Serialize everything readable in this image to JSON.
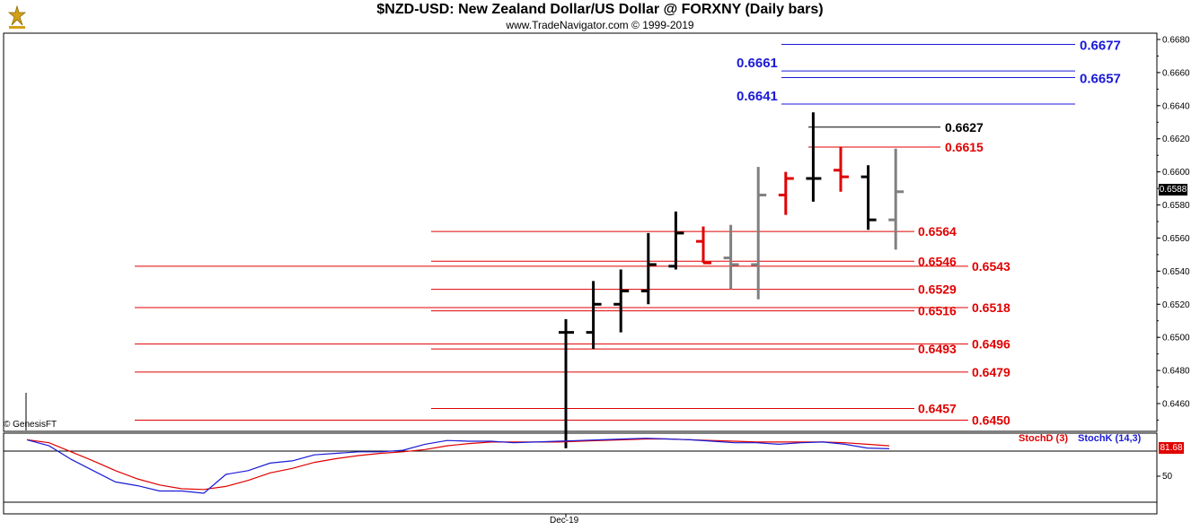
{
  "header": {
    "title": "$NZD-USD:  New Zealand Dollar/US Dollar @ FORXNY  (Daily bars)",
    "subtitle": "www.TradeNavigator.com © 1999-2019"
  },
  "copyright": "© GenesisFT",
  "last_price": "0.6588",
  "stoch": {
    "value_badge": "81.68",
    "legend_d": "StochD (3)",
    "legend_k": "StochK (14,3)",
    "ticks": [
      "50"
    ],
    "colors": {
      "d": "#e00000",
      "k": "#1a1ad8"
    }
  },
  "x_label": "Dec-19",
  "colors": {
    "up_bar": "#000000",
    "down_bar": "#e00000",
    "inside_bar": "#808080",
    "support_line": "#e00000",
    "target_line": "#1a1ad8",
    "pivot_line": "#000000"
  },
  "chart_data": {
    "type": "bar",
    "title": "$NZD-USD:  New Zealand Dollar/US Dollar @ FORXNY  (Daily bars)",
    "y_ticks": [
      "0.6680",
      "0.6660",
      "0.6640",
      "0.6620",
      "0.6600",
      "0.6580",
      "0.6560",
      "0.6540",
      "0.6520",
      "0.6500",
      "0.6480",
      "0.6460"
    ],
    "ylim": [
      0.6433,
      0.669
    ],
    "bars": [
      {
        "o": 0.6503,
        "h": 0.6511,
        "l": 0.6433,
        "c": 0.6503,
        "color": "black"
      },
      {
        "o": 0.6503,
        "h": 0.6534,
        "l": 0.6493,
        "c": 0.652,
        "color": "black"
      },
      {
        "o": 0.652,
        "h": 0.6541,
        "l": 0.6503,
        "c": 0.6528,
        "color": "black"
      },
      {
        "o": 0.6528,
        "h": 0.6563,
        "l": 0.652,
        "c": 0.6544,
        "color": "black"
      },
      {
        "o": 0.6543,
        "h": 0.6576,
        "l": 0.6541,
        "c": 0.6563,
        "color": "black"
      },
      {
        "o": 0.6558,
        "h": 0.6567,
        "l": 0.6545,
        "c": 0.6545,
        "color": "red"
      },
      {
        "o": 0.6548,
        "h": 0.6568,
        "l": 0.6529,
        "c": 0.6544,
        "color": "gray"
      },
      {
        "o": 0.6544,
        "h": 0.6603,
        "l": 0.6523,
        "c": 0.6586,
        "color": "gray"
      },
      {
        "o": 0.6586,
        "h": 0.66,
        "l": 0.6574,
        "c": 0.6596,
        "color": "red"
      },
      {
        "o": 0.6596,
        "h": 0.6636,
        "l": 0.6582,
        "c": 0.6596,
        "color": "black"
      },
      {
        "o": 0.6601,
        "h": 0.6615,
        "l": 0.6588,
        "c": 0.6597,
        "color": "red"
      },
      {
        "o": 0.6597,
        "h": 0.6604,
        "l": 0.6565,
        "c": 0.6571,
        "color": "black"
      },
      {
        "o": 0.6571,
        "h": 0.6614,
        "l": 0.6553,
        "c": 0.6588,
        "color": "gray"
      }
    ],
    "levels": [
      {
        "label": "0.6677",
        "value": 0.6677,
        "color": "blue",
        "side": "right"
      },
      {
        "label": "0.6661",
        "value": 0.6661,
        "color": "blue",
        "side": "left"
      },
      {
        "label": "0.6657",
        "value": 0.6657,
        "color": "blue",
        "side": "right"
      },
      {
        "label": "0.6641",
        "value": 0.6641,
        "color": "blue",
        "side": "left"
      },
      {
        "label": "0.6627",
        "value": 0.6627,
        "color": "black",
        "side": "mid"
      },
      {
        "label": "0.6615",
        "value": 0.6615,
        "color": "red",
        "side": "mid"
      },
      {
        "label": "0.6564",
        "value": 0.6564,
        "color": "red",
        "side": "inner"
      },
      {
        "label": "0.6546",
        "value": 0.6546,
        "color": "red",
        "side": "inner"
      },
      {
        "label": "0.6543",
        "value": 0.6543,
        "color": "red",
        "side": "outer"
      },
      {
        "label": "0.6529",
        "value": 0.6529,
        "color": "red",
        "side": "inner"
      },
      {
        "label": "0.6518",
        "value": 0.6518,
        "color": "red",
        "side": "outer"
      },
      {
        "label": "0.6516",
        "value": 0.6516,
        "color": "red",
        "side": "inner"
      },
      {
        "label": "0.6496",
        "value": 0.6496,
        "color": "red",
        "side": "outer"
      },
      {
        "label": "0.6493",
        "value": 0.6493,
        "color": "red",
        "side": "inner"
      },
      {
        "label": "0.6479",
        "value": 0.6479,
        "color": "red",
        "side": "outer"
      },
      {
        "label": "0.6457",
        "value": 0.6457,
        "color": "red",
        "side": "inner"
      },
      {
        "label": "0.6450",
        "value": 0.645,
        "color": "red",
        "side": "outer"
      }
    ],
    "stoch_k": [
      96,
      88,
      70,
      55,
      40,
      35,
      28,
      28,
      25,
      50,
      55,
      65,
      68,
      76,
      78,
      80,
      80,
      82,
      90,
      95,
      94,
      94,
      92,
      93,
      94,
      95,
      96,
      97,
      98,
      97,
      96,
      94,
      92,
      92,
      90,
      92,
      93,
      90,
      85,
      84
    ],
    "stoch_d": [
      96,
      92,
      80,
      68,
      55,
      44,
      36,
      31,
      30,
      34,
      42,
      52,
      58,
      66,
      71,
      75,
      78,
      80,
      83,
      88,
      91,
      93,
      93,
      93,
      93,
      94,
      95,
      96,
      97,
      97,
      96,
      95,
      94,
      93,
      93,
      93,
      93,
      92,
      90,
      88
    ],
    "stoch_ylim": [
      0,
      100
    ]
  }
}
